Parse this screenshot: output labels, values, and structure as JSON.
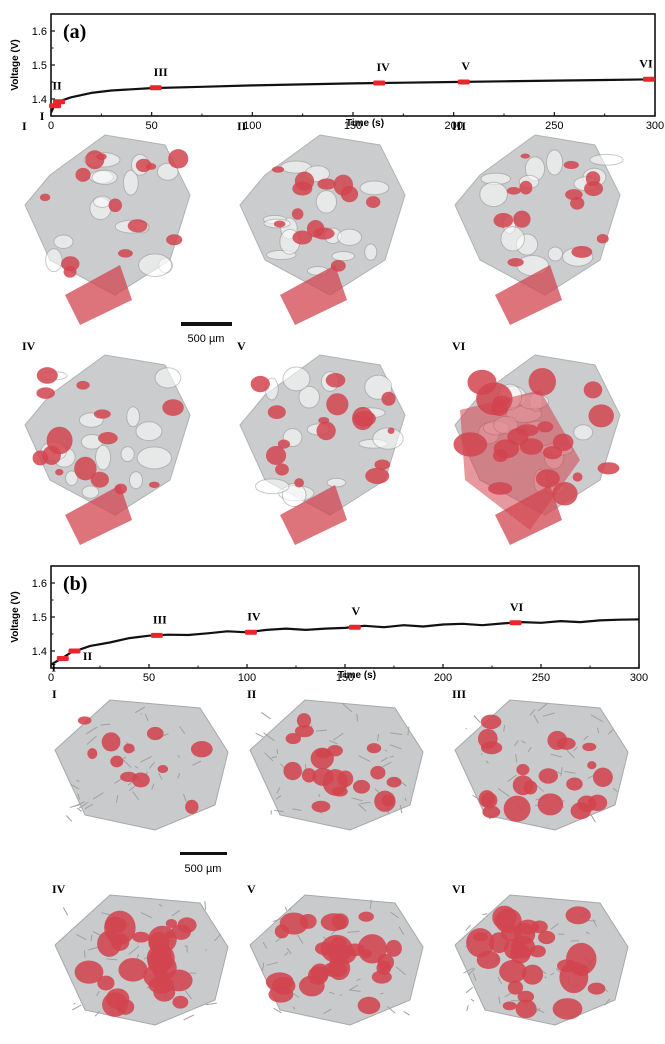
{
  "chart_data": [
    {
      "type": "line",
      "panel_label": "(a)",
      "xlabel": "Time (s)",
      "ylabel": "Voltage (V)",
      "xlim": [
        0,
        300
      ],
      "ylim": [
        1.35,
        1.65
      ],
      "x_ticks": [
        0,
        50,
        100,
        150,
        200,
        250,
        300
      ],
      "y_ticks": [
        1.4,
        1.5,
        1.6
      ],
      "series": [
        {
          "x": [
            0,
            2,
            5,
            10,
            20,
            30,
            50,
            75,
            100,
            125,
            150,
            175,
            200,
            225,
            250,
            275,
            300
          ],
          "y": [
            1.36,
            1.385,
            1.395,
            1.405,
            1.418,
            1.425,
            1.432,
            1.436,
            1.44,
            1.443,
            1.446,
            1.448,
            1.45,
            1.452,
            1.454,
            1.456,
            1.458
          ]
        }
      ],
      "markers": [
        {
          "label": "I",
          "x": 2,
          "y": 1.38
        },
        {
          "label": "II",
          "x": 4,
          "y": 1.392
        },
        {
          "label": "III",
          "x": 52,
          "y": 1.433
        },
        {
          "label": "IV",
          "x": 163,
          "y": 1.447
        },
        {
          "label": "V",
          "x": 205,
          "y": 1.45
        },
        {
          "label": "VI",
          "x": 297,
          "y": 1.458
        }
      ],
      "marker_color": "#e8262b",
      "line_color": "#111111"
    },
    {
      "type": "line",
      "panel_label": "(b)",
      "xlabel": "Time (s)",
      "ylabel": "Voltage (V)",
      "xlim": [
        0,
        300
      ],
      "ylim": [
        1.35,
        1.65
      ],
      "x_ticks": [
        0,
        50,
        100,
        150,
        200,
        250,
        300
      ],
      "y_ticks": [
        1.4,
        1.5,
        1.6
      ],
      "series": [
        {
          "x": [
            0,
            3,
            6,
            10,
            15,
            20,
            30,
            40,
            50,
            60,
            70,
            80,
            90,
            100,
            110,
            120,
            130,
            140,
            150,
            160,
            170,
            180,
            190,
            200,
            210,
            220,
            230,
            240,
            250,
            260,
            270,
            280,
            290,
            300
          ],
          "y": [
            1.36,
            1.37,
            1.38,
            1.395,
            1.405,
            1.415,
            1.425,
            1.438,
            1.445,
            1.448,
            1.447,
            1.452,
            1.458,
            1.455,
            1.462,
            1.466,
            1.462,
            1.466,
            1.468,
            1.474,
            1.47,
            1.476,
            1.472,
            1.478,
            1.48,
            1.476,
            1.481,
            1.485,
            1.483,
            1.488,
            1.485,
            1.49,
            1.492,
            1.493
          ]
        }
      ],
      "markers": [
        {
          "label": "I",
          "x": 6,
          "y": 1.378
        },
        {
          "label": "II",
          "x": 12,
          "y": 1.4
        },
        {
          "label": "III",
          "x": 54,
          "y": 1.446
        },
        {
          "label": "IV",
          "x": 102,
          "y": 1.455
        },
        {
          "label": "V",
          "x": 155,
          "y": 1.47
        },
        {
          "label": "VI",
          "x": 237,
          "y": 1.483
        }
      ],
      "marker_color": "#e8262b",
      "line_color": "#111111"
    }
  ],
  "section_a": {
    "thumbnails": [
      "I",
      "II",
      "III",
      "IV",
      "V",
      "VI"
    ],
    "red_fraction": [
      0.15,
      0.17,
      0.18,
      0.21,
      0.27,
      0.42
    ],
    "scale_bar": "500 µm"
  },
  "section_b": {
    "thumbnails": [
      "I",
      "II",
      "III",
      "IV",
      "V",
      "VI"
    ],
    "red_fraction": [
      0.12,
      0.28,
      0.33,
      0.45,
      0.47,
      0.49
    ],
    "scale_bar": "500 µm"
  },
  "colors": {
    "gray_scaffold": "#b9babb",
    "red_phase": "#d2444f",
    "axis": "#111111"
  }
}
